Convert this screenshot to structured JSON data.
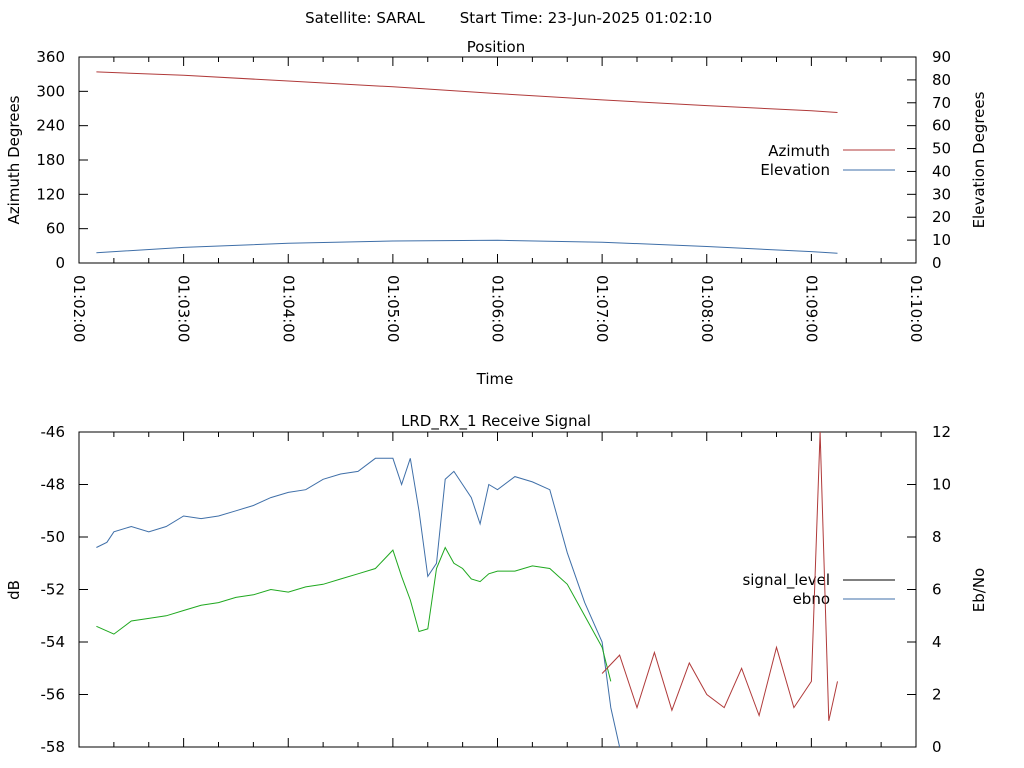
{
  "header": {
    "satellite": "Satellite: SARAL",
    "start_time": "Start Time: 23-Jun-2025 01:02:10"
  },
  "chart_data": [
    {
      "type": "line",
      "title": "Position",
      "xlabel": "Time",
      "ylabel": "Azimuth Degrees",
      "y2label": "Elevation Degrees",
      "xlim": [
        "01:02:00",
        "01:10:00"
      ],
      "xticks": [
        "01:02:00",
        "01:03:00",
        "01:04:00",
        "01:05:00",
        "01:06:00",
        "01:07:00",
        "01:08:00",
        "01:09:00",
        "01:10:00"
      ],
      "ylim": [
        0,
        360
      ],
      "yticks": [
        "0",
        "60",
        "120",
        "180",
        "240",
        "300",
        "360"
      ],
      "y2lim": [
        0,
        90
      ],
      "y2ticks": [
        "0",
        "10",
        "20",
        "30",
        "40",
        "50",
        "60",
        "70",
        "80",
        "90"
      ],
      "legend_position": "right",
      "series": [
        {
          "name": "Azimuth",
          "axis": "left",
          "color": "#b03a3a",
          "x": [
            "01:02:10",
            "01:03:00",
            "01:04:00",
            "01:05:00",
            "01:06:00",
            "01:07:00",
            "01:08:00",
            "01:09:00",
            "01:09:15"
          ],
          "y": [
            334,
            328,
            318,
            308,
            296,
            285,
            275,
            266,
            263
          ]
        },
        {
          "name": "Elevation",
          "axis": "right",
          "color": "#3f6fa8",
          "x": [
            "01:02:10",
            "01:03:00",
            "01:04:00",
            "01:05:00",
            "01:06:00",
            "01:07:00",
            "01:08:00",
            "01:09:00",
            "01:09:15"
          ],
          "y": [
            4.5,
            6.8,
            8.6,
            9.6,
            9.9,
            9.1,
            7.2,
            5.0,
            4.3
          ]
        }
      ]
    },
    {
      "type": "line",
      "title": "LRD_RX_1 Receive Signal",
      "xlabel": "",
      "ylabel": "dB",
      "y2label": "Eb/No",
      "xlim": [
        "01:02:00",
        "01:10:00"
      ],
      "ylim": [
        -58,
        -46
      ],
      "yticks": [
        "-46",
        "-48",
        "-50",
        "-52",
        "-54",
        "-56",
        "-58"
      ],
      "y2lim": [
        0,
        12
      ],
      "y2ticks": [
        "0",
        "2",
        "4",
        "6",
        "8",
        "10",
        "12"
      ],
      "legend_position": "right",
      "series": [
        {
          "name": "signal_level",
          "axis": "left",
          "color": "#000000",
          "x": [],
          "y": []
        },
        {
          "name": "ebno",
          "axis": "right",
          "color": "#3f6fa8",
          "x": [
            "01:02:10",
            "01:02:16",
            "01:02:20",
            "01:02:30",
            "01:02:40",
            "01:02:50",
            "01:03:00",
            "01:03:10",
            "01:03:20",
            "01:03:30",
            "01:03:40",
            "01:03:50",
            "01:04:00",
            "01:04:10",
            "01:04:20",
            "01:04:30",
            "01:04:40",
            "01:04:50",
            "01:05:00",
            "01:05:05",
            "01:05:10",
            "01:05:15",
            "01:05:20",
            "01:05:25",
            "01:05:30",
            "01:05:35",
            "01:05:40",
            "01:05:45",
            "01:05:50",
            "01:05:55",
            "01:06:00",
            "01:06:10",
            "01:06:20",
            "01:06:30",
            "01:06:40",
            "01:06:50",
            "01:07:00",
            "01:07:05",
            "01:07:10"
          ],
          "y": [
            7.6,
            7.8,
            8.2,
            8.4,
            8.2,
            8.4,
            8.8,
            8.7,
            8.8,
            9.0,
            9.2,
            9.5,
            9.7,
            9.8,
            10.2,
            10.4,
            10.5,
            11.0,
            11.0,
            10.0,
            11.0,
            9.0,
            6.5,
            7.0,
            10.2,
            10.5,
            10.0,
            9.5,
            8.5,
            10.0,
            9.8,
            10.3,
            10.1,
            9.8,
            7.4,
            5.5,
            4.0,
            1.5,
            0.0
          ]
        },
        {
          "name": "",
          "axis": "right",
          "color": "#1fa81f",
          "x": [
            "01:02:10",
            "01:02:20",
            "01:02:30",
            "01:02:40",
            "01:02:50",
            "01:03:00",
            "01:03:10",
            "01:03:20",
            "01:03:30",
            "01:03:40",
            "01:03:50",
            "01:04:00",
            "01:04:10",
            "01:04:20",
            "01:04:30",
            "01:04:40",
            "01:04:50",
            "01:05:00",
            "01:05:05",
            "01:05:10",
            "01:05:15",
            "01:05:20",
            "01:05:25",
            "01:05:30",
            "01:05:35",
            "01:05:40",
            "01:05:45",
            "01:05:50",
            "01:05:55",
            "01:06:00",
            "01:06:10",
            "01:06:20",
            "01:06:30",
            "01:06:40",
            "01:06:50",
            "01:07:00",
            "01:07:05"
          ],
          "y": [
            4.6,
            4.3,
            4.8,
            4.9,
            5.0,
            5.2,
            5.4,
            5.5,
            5.7,
            5.8,
            6.0,
            5.9,
            6.1,
            6.2,
            6.4,
            6.6,
            6.8,
            7.5,
            6.5,
            5.6,
            4.4,
            4.5,
            6.8,
            7.6,
            7.0,
            6.8,
            6.4,
            6.3,
            6.6,
            6.7,
            6.7,
            6.9,
            6.8,
            6.2,
            5.0,
            3.8,
            2.5
          ]
        },
        {
          "name": "",
          "axis": "right",
          "color": "#b03a3a",
          "x": [
            "01:07:00",
            "01:07:10",
            "01:07:20",
            "01:07:30",
            "01:07:40",
            "01:07:50",
            "01:08:00",
            "01:08:10",
            "01:08:20",
            "01:08:30",
            "01:08:40",
            "01:08:50",
            "01:09:00",
            "01:09:05",
            "01:09:10",
            "01:09:15"
          ],
          "y": [
            2.8,
            3.5,
            1.5,
            3.6,
            1.4,
            3.2,
            2.0,
            1.5,
            3.0,
            1.2,
            3.8,
            1.5,
            2.5,
            12.0,
            1.0,
            2.5
          ]
        }
      ]
    }
  ]
}
